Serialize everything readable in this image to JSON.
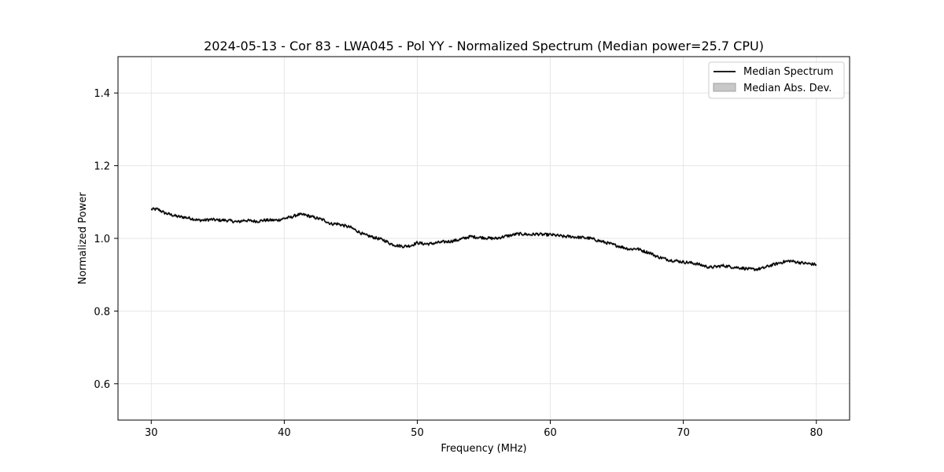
{
  "chart_data": {
    "type": "line",
    "title": "2024-05-13 - Cor 83 - LWA045 - Pol YY - Normalized Spectrum (Median power=25.7 CPU)",
    "xlabel": "Frequency (MHz)",
    "ylabel": "Normalized Power",
    "xlim": [
      27.5,
      82.5
    ],
    "ylim": [
      0.5,
      1.5
    ],
    "xticks": [
      30,
      40,
      50,
      60,
      70,
      80
    ],
    "yticks": [
      0.6,
      0.8,
      1.0,
      1.2,
      1.4
    ],
    "xtick_labels": [
      "30",
      "40",
      "50",
      "60",
      "70",
      "80"
    ],
    "ytick_labels": [
      "0.6",
      "0.8",
      "1.0",
      "1.2",
      "1.4"
    ],
    "grid": true,
    "legend_position": "top-right",
    "legend": [
      "Median Spectrum",
      "Median Abs. Dev."
    ],
    "series": [
      {
        "name": "Median Spectrum",
        "color": "#000000",
        "x": [
          30,
          30.5,
          31,
          31.5,
          32,
          32.5,
          33,
          33.5,
          34,
          34.5,
          35,
          35.5,
          36,
          36.5,
          37,
          37.5,
          38,
          38.5,
          39,
          39.5,
          40,
          40.5,
          41,
          41.5,
          42,
          42.5,
          43,
          43.5,
          44,
          44.5,
          45,
          45.5,
          46,
          46.5,
          47,
          47.5,
          48,
          48.5,
          49,
          49.5,
          50,
          50.5,
          51,
          51.5,
          52,
          52.5,
          53,
          53.5,
          54,
          54.5,
          55,
          55.5,
          56,
          56.5,
          57,
          57.5,
          58,
          58.5,
          59,
          59.5,
          60,
          60.5,
          61,
          61.5,
          62,
          62.5,
          63,
          63.5,
          64,
          64.5,
          65,
          65.5,
          66,
          66.5,
          67,
          67.5,
          68,
          68.5,
          69,
          69.5,
          70,
          70.5,
          71,
          71.5,
          72,
          72.5,
          73,
          73.5,
          74,
          74.5,
          75,
          75.5,
          76,
          76.5,
          77,
          77.5,
          78,
          78.5,
          79,
          79.5,
          80
        ],
        "y": [
          1.08,
          1.08,
          1.07,
          1.065,
          1.06,
          1.058,
          1.055,
          1.05,
          1.05,
          1.052,
          1.05,
          1.05,
          1.048,
          1.045,
          1.05,
          1.048,
          1.047,
          1.05,
          1.05,
          1.05,
          1.055,
          1.058,
          1.065,
          1.065,
          1.06,
          1.055,
          1.05,
          1.04,
          1.04,
          1.035,
          1.03,
          1.02,
          1.01,
          1.005,
          1.0,
          0.995,
          0.985,
          0.98,
          0.978,
          0.98,
          0.988,
          0.985,
          0.985,
          0.988,
          0.99,
          0.992,
          0.995,
          1.0,
          1.005,
          1.003,
          1.002,
          1.0,
          1.0,
          1.005,
          1.008,
          1.012,
          1.012,
          1.01,
          1.012,
          1.01,
          1.01,
          1.008,
          1.005,
          1.005,
          1.003,
          1.002,
          1.0,
          0.995,
          0.99,
          0.985,
          0.98,
          0.975,
          0.97,
          0.972,
          0.965,
          0.96,
          0.95,
          0.945,
          0.94,
          0.938,
          0.935,
          0.933,
          0.93,
          0.925,
          0.92,
          0.922,
          0.925,
          0.922,
          0.92,
          0.918,
          0.915,
          0.915,
          0.918,
          0.925,
          0.93,
          0.935,
          0.938,
          0.935,
          0.932,
          0.93,
          0.928
        ]
      }
    ],
    "mad_band": {
      "name": "Median Abs. Dev.",
      "color": "#bbbbbb",
      "half_width": 0.004
    }
  }
}
